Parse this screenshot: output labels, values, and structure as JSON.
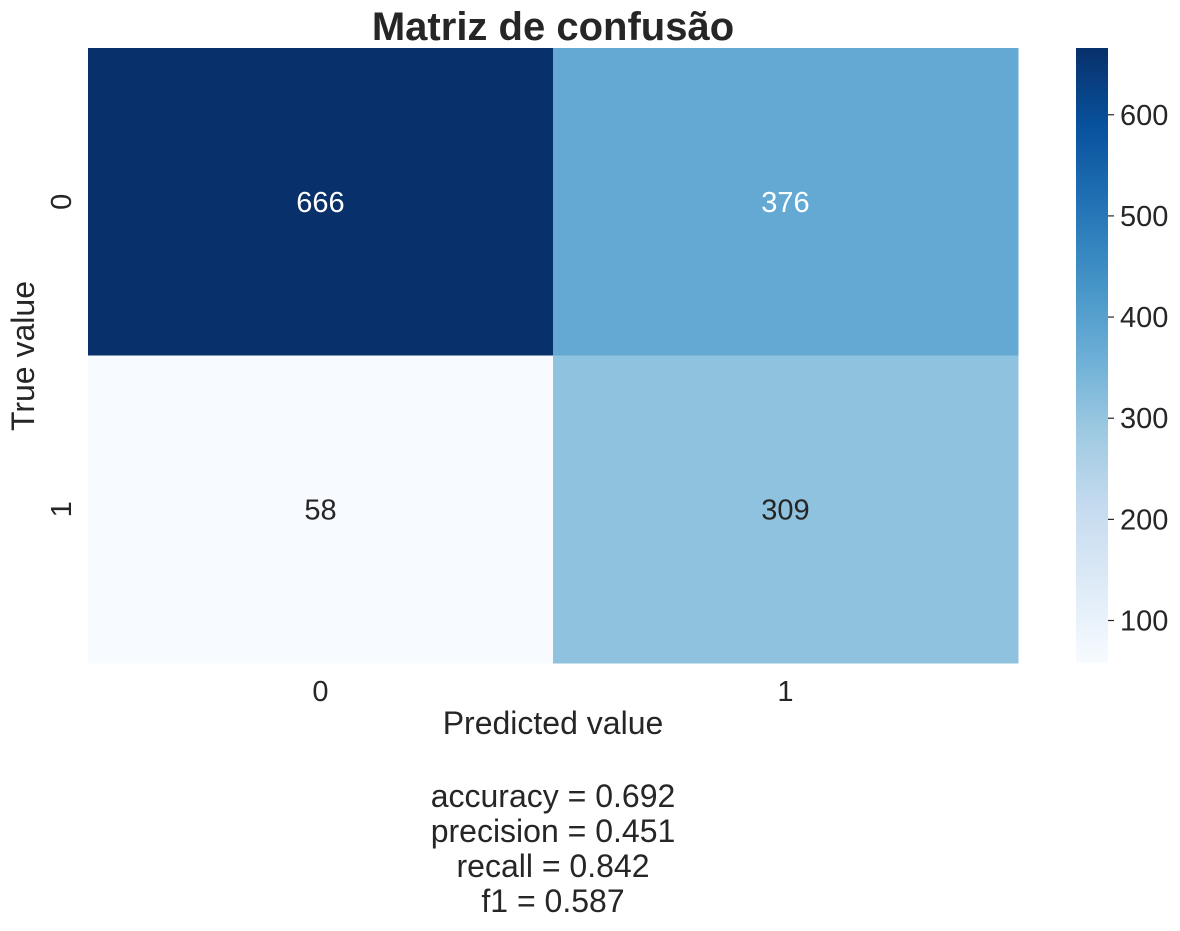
{
  "chart_data": {
    "type": "heatmap",
    "title": "Matriz de confusão",
    "xlabel": "Predicted value",
    "ylabel": "True value",
    "x_categories": [
      "0",
      "1"
    ],
    "y_categories": [
      "0",
      "1"
    ],
    "values": [
      [
        666,
        376
      ],
      [
        58,
        309
      ]
    ],
    "colormap": "Blues",
    "colorbar": {
      "vmin": 58,
      "vmax": 666,
      "ticks": [
        100,
        200,
        300,
        400,
        500,
        600
      ]
    },
    "grid": false,
    "metrics": [
      "accuracy = 0.692",
      "precision = 0.451",
      "recall = 0.842",
      "f1 = 0.587"
    ]
  }
}
